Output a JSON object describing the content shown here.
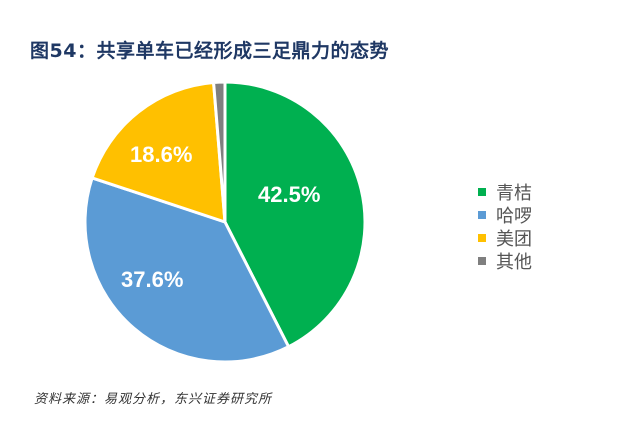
{
  "title": "图54：共享单车已经形成三足鼎力的态势",
  "source": "资料来源：易观分析，东兴证券研究所",
  "legend": [
    {
      "label": "青桔",
      "color": "#00b050"
    },
    {
      "label": "哈啰",
      "color": "#5b9bd5"
    },
    {
      "label": "美团",
      "color": "#ffc000"
    },
    {
      "label": "其他",
      "color": "#7f7f7f"
    }
  ],
  "slice_labels": {
    "qingju": "42.5%",
    "haluo": "37.6%",
    "meituan": "18.6%"
  },
  "chart_data": {
    "type": "pie",
    "title": "图54：共享单车已经形成三足鼎力的态势",
    "categories": [
      "青桔",
      "哈啰",
      "美团",
      "其他"
    ],
    "values": [
      42.5,
      37.6,
      18.6,
      1.3
    ],
    "colors": [
      "#00b050",
      "#5b9bd5",
      "#ffc000",
      "#7f7f7f"
    ],
    "data_labels": [
      "42.5%",
      "37.6%",
      "18.6%",
      ""
    ],
    "legend_position": "right",
    "start_angle": "12 o'clock, clockwise"
  }
}
